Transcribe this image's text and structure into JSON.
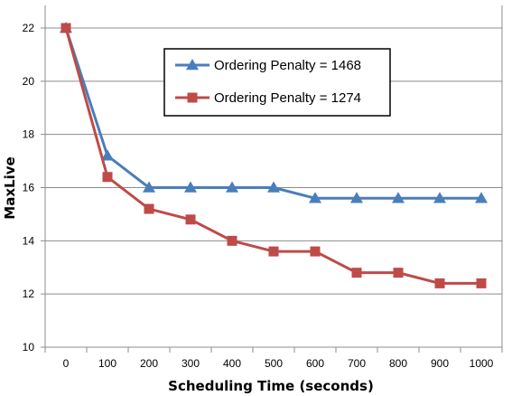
{
  "chart_data": {
    "type": "line",
    "title": "",
    "xlabel": "Scheduling Time (seconds)",
    "ylabel": "MaxLive",
    "categories": [
      "0",
      "100",
      "200",
      "300",
      "400",
      "500",
      "600",
      "700",
      "800",
      "900",
      "1000"
    ],
    "ylim": [
      10,
      22
    ],
    "yticks": [
      "10",
      "12",
      "14",
      "16",
      "18",
      "20",
      "22"
    ],
    "grid": "horizontal",
    "legend_position": "top-right",
    "series": [
      {
        "name": "Ordering Penalty = 1468",
        "color": "#4a7ebb",
        "marker": "triangle",
        "values": [
          22,
          17.2,
          16.0,
          16.0,
          16.0,
          16.0,
          15.6,
          15.6,
          15.6,
          15.6,
          15.6
        ]
      },
      {
        "name": "Ordering Penalty = 1274",
        "color": "#be4b48",
        "marker": "square",
        "values": [
          22,
          16.4,
          15.2,
          14.8,
          14.0,
          13.6,
          13.6,
          12.8,
          12.8,
          12.4,
          12.4
        ]
      }
    ]
  }
}
